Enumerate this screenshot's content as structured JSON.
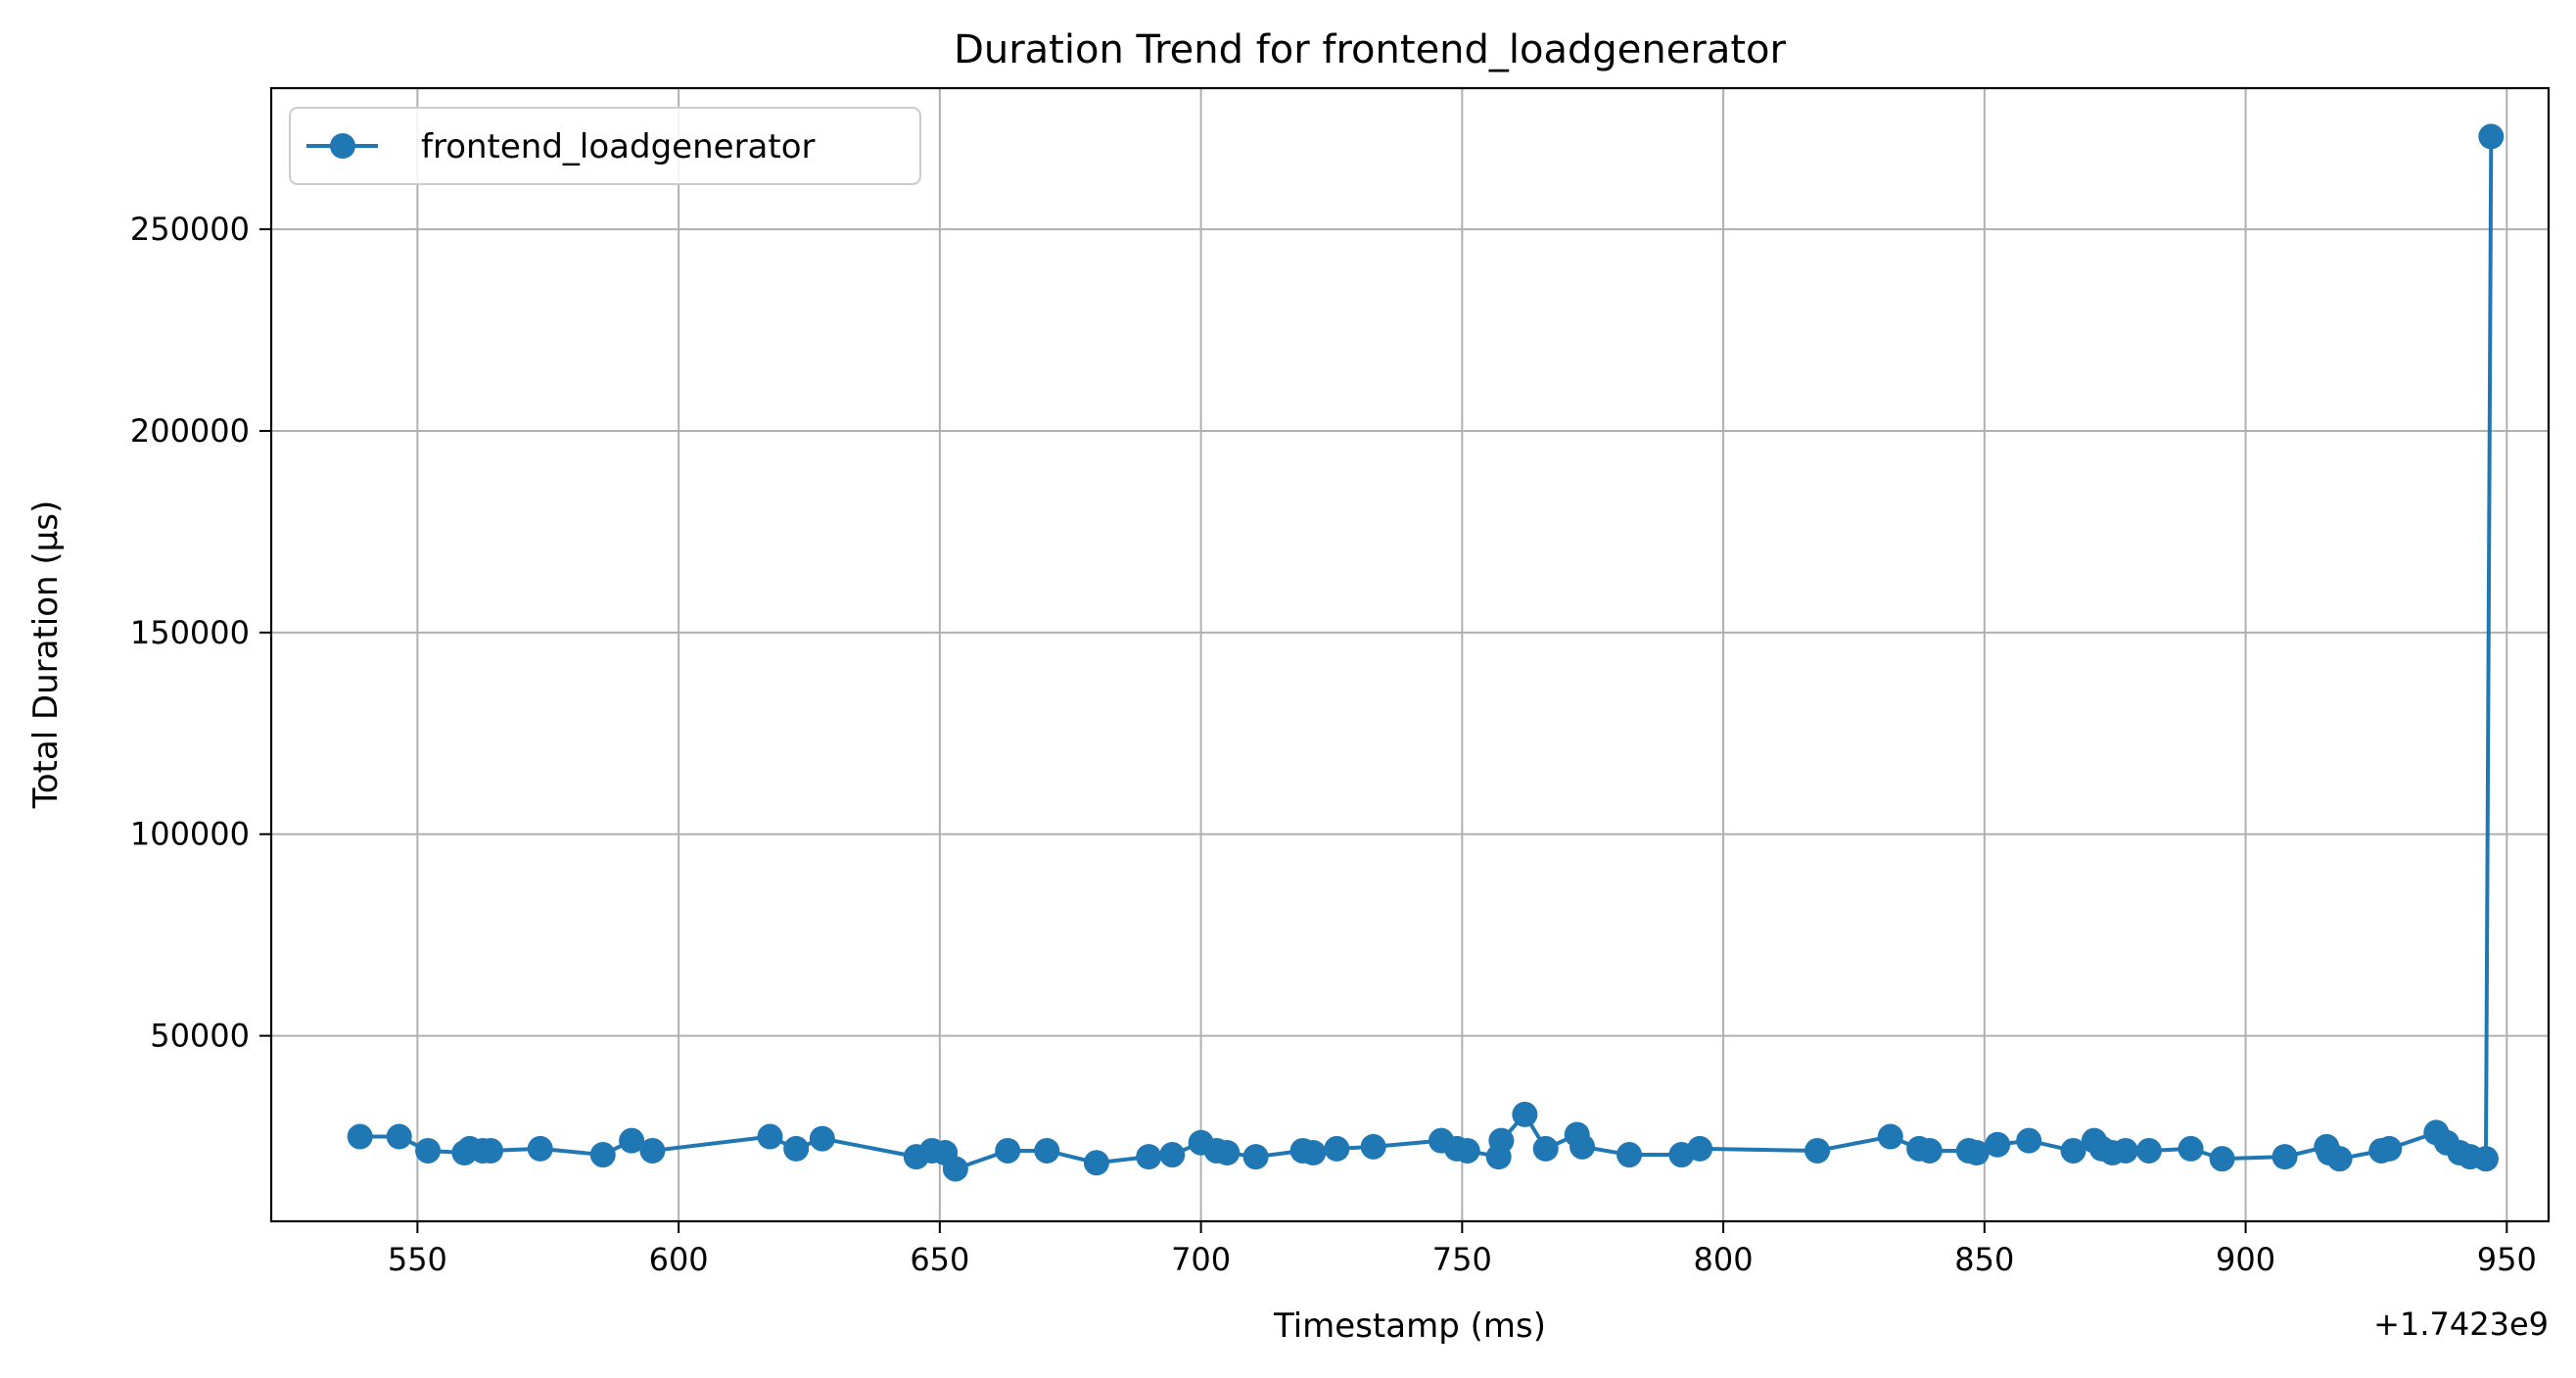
{
  "chart_data": {
    "type": "line",
    "title": "Duration Trend for frontend_loadgenerator",
    "xlabel": "Timestamp (ms)",
    "ylabel": "Total Duration (µs)",
    "x_offset_label": "+1.7423e9",
    "xlim": [
      522,
      958
    ],
    "ylim": [
      4000,
      285000
    ],
    "xticks": [
      550,
      600,
      650,
      700,
      750,
      800,
      850,
      900,
      950
    ],
    "yticks": [
      50000,
      100000,
      150000,
      200000,
      250000
    ],
    "grid": true,
    "legend_position": "top-left",
    "color": "#1f77b4",
    "series": [
      {
        "name": "frontend_loadgenerator",
        "x": [
          539,
          546.5,
          552,
          559,
          560,
          562.5,
          564,
          573.5,
          585.5,
          591,
          595,
          617.5,
          622.5,
          627.5,
          645.5,
          648.5,
          651,
          653,
          663,
          670.5,
          680,
          690,
          694.5,
          700,
          703,
          705,
          710.5,
          719.5,
          721.5,
          726,
          733,
          746,
          749,
          751,
          757,
          757.5,
          762,
          766,
          772,
          773,
          782,
          792,
          795.5,
          818,
          832,
          837.5,
          839.5,
          847,
          848.5,
          852.5,
          858.5,
          867,
          871,
          872.5,
          874.5,
          877,
          881.5,
          889.5,
          895.5,
          907.5,
          915.5,
          916,
          918,
          926,
          927.5,
          936.5,
          938.5,
          941,
          943,
          946,
          947
        ],
        "y": [
          25000,
          25000,
          21500,
          21000,
          22000,
          21500,
          21500,
          22000,
          20500,
          24000,
          21500,
          25000,
          22000,
          24500,
          20000,
          21500,
          21000,
          17000,
          21500,
          21500,
          18500,
          20000,
          20500,
          23500,
          21500,
          21000,
          20000,
          21500,
          21000,
          22000,
          22500,
          24000,
          22000,
          21500,
          20000,
          24000,
          30500,
          22000,
          25500,
          22500,
          20500,
          20500,
          22000,
          21500,
          25000,
          22000,
          21500,
          21500,
          21000,
          23000,
          24000,
          21500,
          24000,
          22000,
          21000,
          21500,
          21500,
          22000,
          19500,
          20000,
          22500,
          21000,
          19500,
          21500,
          22000,
          26000,
          23500,
          21000,
          20000,
          19500,
          273000
        ]
      }
    ]
  }
}
